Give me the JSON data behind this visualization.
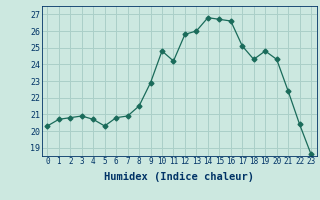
{
  "x": [
    0,
    1,
    2,
    3,
    4,
    5,
    6,
    7,
    8,
    9,
    10,
    11,
    12,
    13,
    14,
    15,
    16,
    17,
    18,
    19,
    20,
    21,
    22,
    23
  ],
  "y": [
    20.3,
    20.7,
    20.8,
    20.9,
    20.7,
    20.3,
    20.8,
    20.9,
    21.5,
    22.9,
    24.8,
    24.2,
    25.8,
    26.0,
    26.8,
    26.7,
    26.6,
    25.1,
    24.3,
    24.8,
    24.3,
    22.4,
    20.4,
    18.6
  ],
  "line_color": "#1a6b5a",
  "marker": "D",
  "marker_size": 2.5,
  "bg_color": "#cce8e0",
  "grid_color": "#aacfc8",
  "xlabel": "Humidex (Indice chaleur)",
  "ylabel_ticks": [
    19,
    20,
    21,
    22,
    23,
    24,
    25,
    26,
    27
  ],
  "xlim": [
    -0.5,
    23.5
  ],
  "ylim": [
    18.5,
    27.5
  ],
  "xticks": [
    0,
    1,
    2,
    3,
    4,
    5,
    6,
    7,
    8,
    9,
    10,
    11,
    12,
    13,
    14,
    15,
    16,
    17,
    18,
    19,
    20,
    21,
    22,
    23
  ],
  "tick_color": "#003366",
  "axis_label_color": "#003366",
  "label_fontsize": 7.5,
  "tick_fontsize": 5.5
}
